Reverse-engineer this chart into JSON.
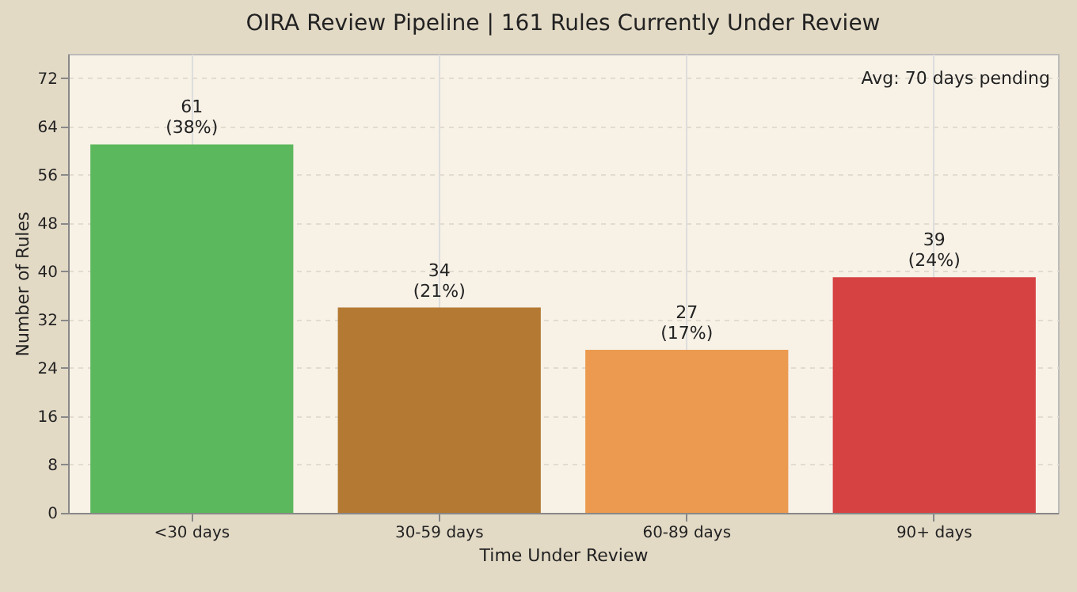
{
  "chart_data": {
    "type": "bar",
    "title": "OIRA Review Pipeline | 161 Rules Currently Under Review",
    "xlabel": "Time Under Review",
    "ylabel": "Number of Rules",
    "categories": [
      "<30 days",
      "30-59 days",
      "60-89 days",
      "90+ days"
    ],
    "values": [
      61,
      34,
      27,
      39
    ],
    "colors": [
      "#5cb85c",
      "#b47a34",
      "#ec9a4f",
      "#d64242"
    ],
    "value_labels": [
      "61\n(38%)",
      "34\n(21%)",
      "27\n(17%)",
      "39\n(24%)"
    ],
    "ylim": [
      0,
      76
    ],
    "yticks": [
      0,
      8,
      16,
      24,
      32,
      40,
      48,
      56,
      64,
      72
    ],
    "grid": true,
    "legend": false,
    "annotations": [
      "Avg: 70 days pending"
    ]
  }
}
